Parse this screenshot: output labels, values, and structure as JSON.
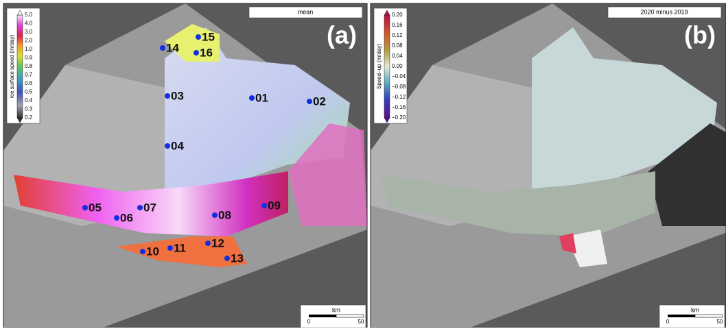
{
  "panels": [
    {
      "label": "(a)",
      "title": "mean",
      "colorbar": {
        "label": "Ice surface speed (m/day)",
        "ticks": [
          "5.0",
          "4.0",
          "3.0",
          "2.0",
          "1.0",
          "0.9",
          "0.8",
          "0.7",
          "0.6",
          "0.5",
          "0.4",
          "0.3",
          "0.2"
        ]
      },
      "points": [
        "01",
        "02",
        "03",
        "04",
        "05",
        "06",
        "07",
        "08",
        "09",
        "10",
        "11",
        "12",
        "13",
        "14",
        "15",
        "16"
      ],
      "scale": {
        "unit": "km",
        "ticks": [
          "0",
          "50"
        ]
      }
    },
    {
      "label": "(b)",
      "title": "2020 minus 2019",
      "colorbar": {
        "label": "Speed−up (m/day)",
        "ticks": [
          "0.20",
          "0.16",
          "0.12",
          "0.08",
          "0.04",
          "0.00",
          "−0.04",
          "−0.08",
          "−0.12",
          "−0.16",
          "−0.20"
        ]
      },
      "scale": {
        "unit": "km",
        "ticks": [
          "0",
          "50"
        ]
      }
    }
  ]
}
